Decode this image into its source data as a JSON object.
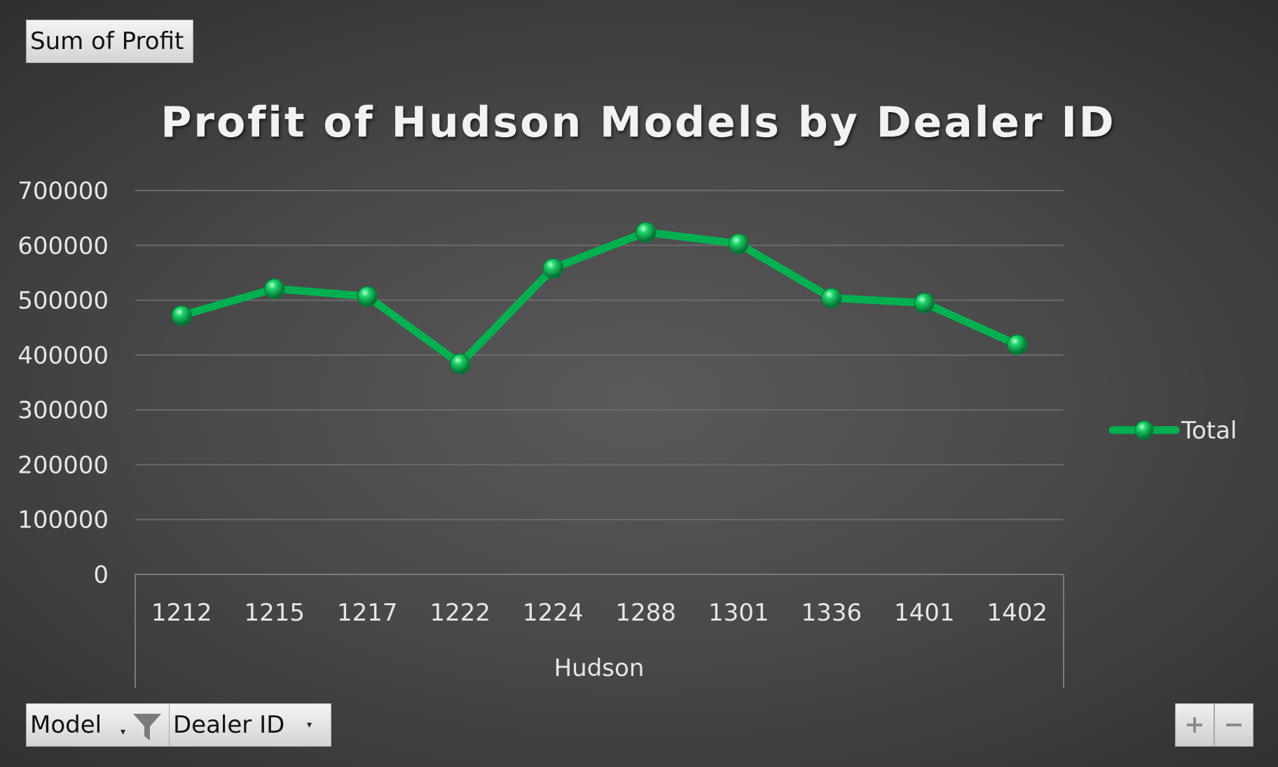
{
  "pivot": {
    "value_field": "Sum of Profit",
    "axis_fields": [
      {
        "label": "Model"
      },
      {
        "label": "Dealer ID"
      }
    ],
    "expand_label": "+",
    "collapse_label": "−"
  },
  "chart_data": {
    "type": "line",
    "title": "Profit of Hudson Models by Dealer ID",
    "group_label": "Hudson",
    "categories": [
      "1212",
      "1215",
      "1217",
      "1222",
      "1224",
      "1288",
      "1301",
      "1336",
      "1401",
      "1402"
    ],
    "series": [
      {
        "name": "Total",
        "values": [
          472000,
          521000,
          507000,
          384000,
          558000,
          624000,
          603000,
          504000,
          495000,
          419000
        ],
        "color": "#00b050"
      }
    ],
    "y_ticks": [
      "0",
      "100000",
      "200000",
      "300000",
      "400000",
      "500000",
      "600000",
      "700000"
    ],
    "ylim": [
      0,
      700000
    ],
    "grid": true,
    "legend_position": "right",
    "colors": {
      "gridline": "#6b6b6b",
      "axis_text": "#e6e6e6",
      "title_text": "#f2f2f2"
    }
  }
}
